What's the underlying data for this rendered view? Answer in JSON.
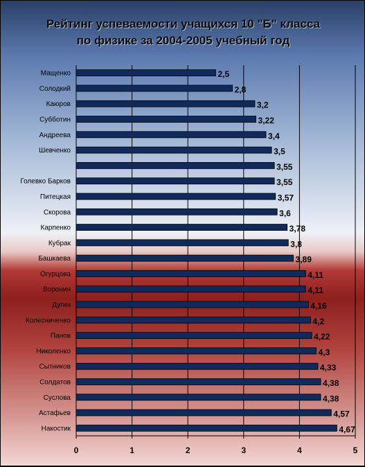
{
  "title_line1": "Рейтинг успеваемости учащихся 10 \"Б\" класса",
  "title_line2": "по физике за 2004-2005 учебный год",
  "chart_data": {
    "type": "bar",
    "orientation": "horizontal",
    "title": "Рейтинг успеваемости учащихся 10 \"Б\" класса по физике за 2004-2005 учебный год",
    "categories": [
      "Мащенко",
      "Солодкий",
      "Каюров",
      "Субботин",
      "Андреева",
      "Шевченко",
      "",
      "Голевко    Барков",
      "Питецкая",
      "Скорова",
      "Карпенко",
      "Кубрак",
      "Башкаева",
      "Огурцова",
      "Воронин",
      "Дугин",
      "Колесниченко",
      "Панов",
      "Николенко",
      "Сытников",
      "Солдатов",
      "Суслова",
      "Астафьев",
      "Накостик"
    ],
    "values": [
      2.5,
      2.8,
      3.2,
      3.22,
      3.4,
      3.5,
      3.55,
      3.55,
      3.57,
      3.6,
      3.78,
      3.8,
      3.89,
      4.11,
      4.11,
      4.16,
      4.2,
      4.22,
      4.3,
      4.33,
      4.38,
      4.38,
      4.57,
      4.67
    ],
    "value_labels": [
      "2,5",
      "2,8",
      "3,2",
      "3,22",
      "3,4",
      "3,5",
      "3,55",
      "3,55",
      "3,57",
      "3,6",
      "3,78",
      "3,8",
      "3,89",
      "4,11",
      "4,11",
      "4,16",
      "4,2",
      "4,22",
      "4,3",
      "4,33",
      "4,38",
      "4,38",
      "4,57",
      "4,67"
    ],
    "xlim": [
      0,
      5
    ],
    "xticks": [
      "0",
      "1",
      "2",
      "3",
      "4",
      "5"
    ],
    "bar_color": "#102a5c",
    "grid": true
  }
}
